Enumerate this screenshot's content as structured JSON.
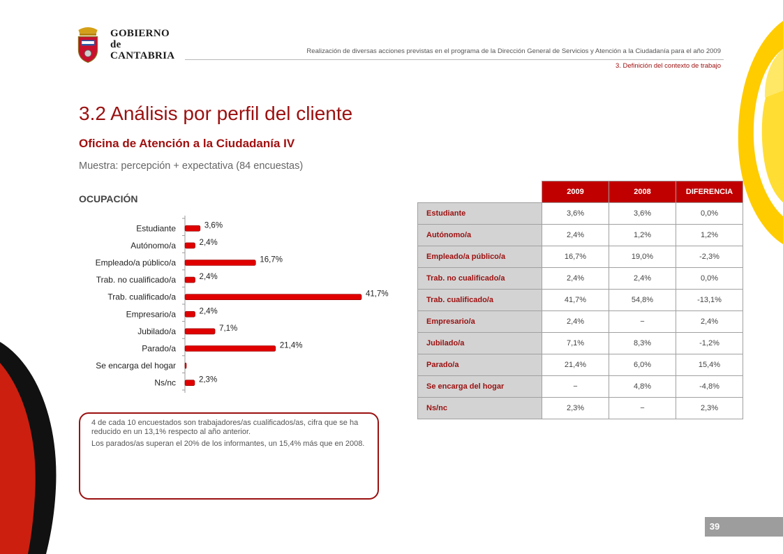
{
  "header": {
    "logo_line1": "GOBIERNO",
    "logo_line2": "de",
    "logo_line3": "CANTABRIA",
    "doc_title": "Realización de diversas acciones previstas en el programa de la Dirección General de Servicios y Atención a la Ciudadanía para el año 2009",
    "section": "3. Definición del contexto de trabajo"
  },
  "page": {
    "title": "3.2 Análisis por perfil del cliente",
    "subtitle": "Oficina de Atención a la Ciudadanía IV",
    "sample": "Muestra: percepción + expectativa (84 encuestas)",
    "section_label": "OCUPACIÓN",
    "page_number": "39"
  },
  "chart_data": {
    "type": "bar",
    "orientation": "horizontal",
    "categories": [
      "Estudiante",
      "Autónomo/a",
      "Empleado/a público/a",
      "Trab. no cualificado/a",
      "Trab. cualificado/a",
      "Empresario/a",
      "Jubilado/a",
      "Parado/a",
      "Se encarga del hogar",
      "Ns/nc"
    ],
    "values": [
      3.6,
      2.4,
      16.7,
      2.4,
      41.7,
      2.4,
      7.1,
      21.4,
      0,
      2.3
    ],
    "labels": [
      "3,6%",
      "2,4%",
      "16,7%",
      "2,4%",
      "41,7%",
      "2,4%",
      "7,1%",
      "21,4%",
      "",
      "2,3%"
    ],
    "bar_color": "#e00000",
    "grid": false
  },
  "note": {
    "p1": "4 de cada 10 encuestados son trabajadores/as cualificados/as, cifra que se ha reducido en un 13,1% respecto al año anterior.",
    "p2": "Los parados/as superan el 20% de los informantes, un 15,4% más que en 2008."
  },
  "table": {
    "headers": [
      "2009",
      "2008",
      "DIFERENCIA"
    ],
    "rows": [
      {
        "label": "Estudiante",
        "c2009": "3,6%",
        "c2008": "3,6%",
        "diff": "0,0%"
      },
      {
        "label": "Autónomo/a",
        "c2009": "2,4%",
        "c2008": "1,2%",
        "diff": "1,2%"
      },
      {
        "label": "Empleado/a público/a",
        "c2009": "16,7%",
        "c2008": "19,0%",
        "diff": "-2,3%"
      },
      {
        "label": "Trab. no cualificado/a",
        "c2009": "2,4%",
        "c2008": "2,4%",
        "diff": "0,0%"
      },
      {
        "label": "Trab. cualificado/a",
        "c2009": "41,7%",
        "c2008": "54,8%",
        "diff": "-13,1%"
      },
      {
        "label": "Empresario/a",
        "c2009": "2,4%",
        "c2008": "−",
        "diff": "2,4%"
      },
      {
        "label": "Jubilado/a",
        "c2009": "7,1%",
        "c2008": "8,3%",
        "diff": "-1,2%"
      },
      {
        "label": "Parado/a",
        "c2009": "21,4%",
        "c2008": "6,0%",
        "diff": "15,4%"
      },
      {
        "label": "Se encarga del hogar",
        "c2009": "−",
        "c2008": "4,8%",
        "diff": "-4,8%"
      },
      {
        "label": "Ns/nc",
        "c2009": "2,3%",
        "c2008": "−",
        "diff": "2,3%"
      }
    ]
  },
  "colors": {
    "brand_red": "#9b1010",
    "header_red": "#c00000",
    "bar_red": "#e00000",
    "deco_yellow": "#ffcc00"
  }
}
